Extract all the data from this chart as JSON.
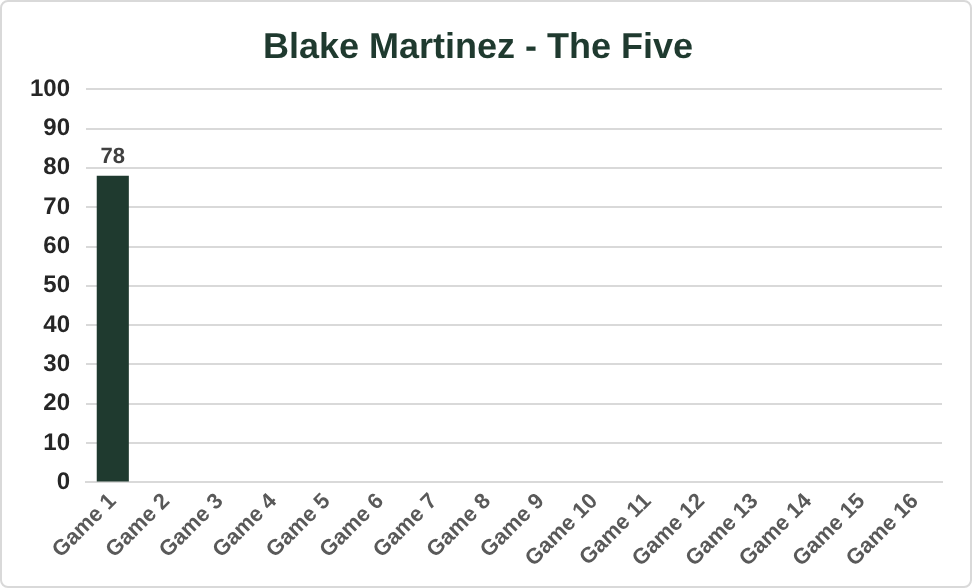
{
  "chart_data": {
    "type": "bar",
    "title": "Blake Martinez - The Five",
    "categories": [
      "Game 1",
      "Game 2",
      "Game 3",
      "Game 4",
      "Game 5",
      "Game 6",
      "Game 7",
      "Game 8",
      "Game 9",
      "Game 10",
      "Game 11",
      "Game 12",
      "Game 13",
      "Game 14",
      "Game 15",
      "Game 16"
    ],
    "values": [
      78,
      null,
      null,
      null,
      null,
      null,
      null,
      null,
      null,
      null,
      null,
      null,
      null,
      null,
      null,
      null
    ],
    "color": "#1f3a2f",
    "ylim": [
      0,
      100
    ],
    "yticks": [
      0,
      10,
      20,
      30,
      40,
      50,
      60,
      70,
      80,
      90,
      100
    ],
    "grid": "y",
    "data_labels": true,
    "legend": false
  }
}
